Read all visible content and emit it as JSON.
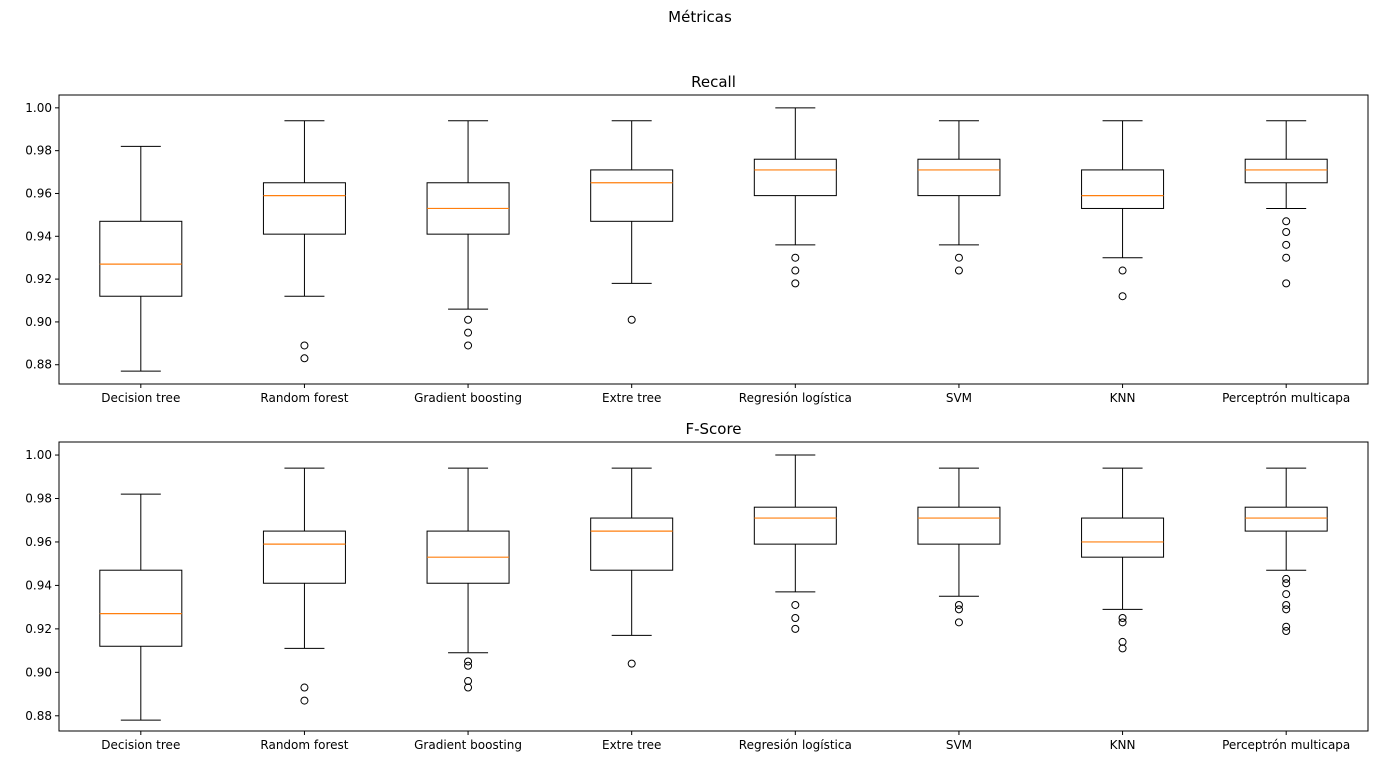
{
  "figure_title": "Métricas",
  "chart_data": [
    {
      "type": "boxplot",
      "title": "Recall",
      "xlabel": "",
      "ylabel": "",
      "ylim": [
        0.871,
        1.006
      ],
      "yticks": [
        "0.88",
        "0.90",
        "0.92",
        "0.94",
        "0.96",
        "0.98",
        "1.00"
      ],
      "categories": [
        "Decision tree",
        "Random forest",
        "Gradient boosting",
        "Extre tree",
        "Regresión logística",
        "SVM",
        "KNN",
        "Perceptrón multicapa"
      ],
      "boxes": [
        {
          "whislo": 0.877,
          "q1": 0.912,
          "med": 0.927,
          "q3": 0.947,
          "whishi": 0.982,
          "fliers": []
        },
        {
          "whislo": 0.912,
          "q1": 0.941,
          "med": 0.959,
          "q3": 0.965,
          "whishi": 0.994,
          "fliers": [
            0.883,
            0.889
          ]
        },
        {
          "whislo": 0.906,
          "q1": 0.941,
          "med": 0.953,
          "q3": 0.965,
          "whishi": 0.994,
          "fliers": [
            0.889,
            0.895,
            0.901
          ]
        },
        {
          "whislo": 0.918,
          "q1": 0.947,
          "med": 0.965,
          "q3": 0.971,
          "whishi": 0.994,
          "fliers": [
            0.901
          ]
        },
        {
          "whislo": 0.936,
          "q1": 0.959,
          "med": 0.971,
          "q3": 0.976,
          "whishi": 1.0,
          "fliers": [
            0.918,
            0.924,
            0.93
          ]
        },
        {
          "whislo": 0.936,
          "q1": 0.959,
          "med": 0.971,
          "q3": 0.976,
          "whishi": 0.994,
          "fliers": [
            0.924,
            0.93
          ]
        },
        {
          "whislo": 0.93,
          "q1": 0.953,
          "med": 0.959,
          "q3": 0.971,
          "whishi": 0.994,
          "fliers": [
            0.912,
            0.924
          ]
        },
        {
          "whislo": 0.953,
          "q1": 0.965,
          "med": 0.971,
          "q3": 0.976,
          "whishi": 0.994,
          "fliers": [
            0.918,
            0.93,
            0.936,
            0.942,
            0.947
          ]
        }
      ]
    },
    {
      "type": "boxplot",
      "title": "F-Score",
      "xlabel": "",
      "ylabel": "",
      "ylim": [
        0.873,
        1.006
      ],
      "yticks": [
        "0.88",
        "0.90",
        "0.92",
        "0.94",
        "0.96",
        "0.98",
        "1.00"
      ],
      "categories": [
        "Decision tree",
        "Random forest",
        "Gradient boosting",
        "Extre tree",
        "Regresión logística",
        "SVM",
        "KNN",
        "Perceptrón multicapa"
      ],
      "boxes": [
        {
          "whislo": 0.878,
          "q1": 0.912,
          "med": 0.927,
          "q3": 0.947,
          "whishi": 0.982,
          "fliers": []
        },
        {
          "whislo": 0.911,
          "q1": 0.941,
          "med": 0.959,
          "q3": 0.965,
          "whishi": 0.994,
          "fliers": [
            0.887,
            0.893
          ]
        },
        {
          "whislo": 0.909,
          "q1": 0.941,
          "med": 0.953,
          "q3": 0.965,
          "whishi": 0.994,
          "fliers": [
            0.893,
            0.896,
            0.903,
            0.905
          ]
        },
        {
          "whislo": 0.917,
          "q1": 0.947,
          "med": 0.965,
          "q3": 0.971,
          "whishi": 0.994,
          "fliers": [
            0.904
          ]
        },
        {
          "whislo": 0.937,
          "q1": 0.959,
          "med": 0.971,
          "q3": 0.976,
          "whishi": 1.0,
          "fliers": [
            0.92,
            0.925,
            0.931
          ]
        },
        {
          "whislo": 0.935,
          "q1": 0.959,
          "med": 0.971,
          "q3": 0.976,
          "whishi": 0.994,
          "fliers": [
            0.923,
            0.929,
            0.931
          ]
        },
        {
          "whislo": 0.929,
          "q1": 0.953,
          "med": 0.96,
          "q3": 0.971,
          "whishi": 0.994,
          "fliers": [
            0.911,
            0.914,
            0.923,
            0.925
          ]
        },
        {
          "whislo": 0.947,
          "q1": 0.965,
          "med": 0.971,
          "q3": 0.976,
          "whishi": 0.994,
          "fliers": [
            0.919,
            0.921,
            0.929,
            0.931,
            0.936,
            0.941,
            0.943
          ]
        }
      ]
    }
  ],
  "colors": {
    "median": "#ff7f0e",
    "box": "#000000"
  }
}
